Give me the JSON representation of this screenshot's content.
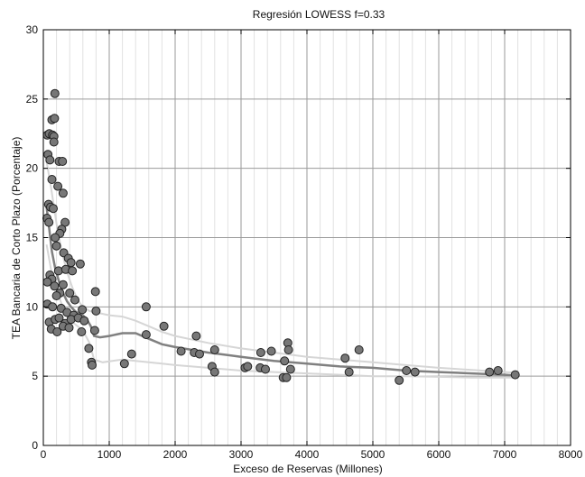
{
  "chart_data": {
    "type": "scatter",
    "title": "Regresión LOWESS f=0.33",
    "xlabel": "Exceso de Reservas (Millones)",
    "ylabel": "TEA Bancaria de Corto Plazo (Porcentaje)",
    "xlim": [
      0,
      8000
    ],
    "ylim": [
      0,
      30
    ],
    "xticks": [
      0,
      1000,
      2000,
      3000,
      4000,
      5000,
      6000,
      7000,
      8000
    ],
    "xtick_labels": [
      "0",
      "1000",
      "2000",
      "3000",
      "4000",
      "5000",
      "6000",
      "7000",
      "8000"
    ],
    "yticks": [
      0,
      5,
      10,
      15,
      20,
      25,
      30
    ],
    "ytick_labels": [
      "0",
      "5",
      "10",
      "15",
      "20",
      "25",
      "30"
    ],
    "grid": true,
    "minor_x_step": 200,
    "colors": {
      "points_fill": "#777777",
      "points_edge": "#222222",
      "lowess_main": "#808080",
      "lowess_bounds": "#d6d6d6",
      "grid_major": "#9a9a9a",
      "grid_minor": "#e2e2e2"
    },
    "points": [
      [
        60,
        22.4
      ],
      [
        90,
        22.5
      ],
      [
        140,
        22.4
      ],
      [
        160,
        22.3
      ],
      [
        130,
        23.5
      ],
      [
        170,
        23.6
      ],
      [
        175,
        25.4
      ],
      [
        70,
        21.0
      ],
      [
        160,
        21.9
      ],
      [
        100,
        20.6
      ],
      [
        240,
        20.5
      ],
      [
        290,
        20.5
      ],
      [
        220,
        18.7
      ],
      [
        300,
        18.2
      ],
      [
        130,
        19.2
      ],
      [
        80,
        17.4
      ],
      [
        110,
        17.2
      ],
      [
        150,
        17.1
      ],
      [
        55,
        16.4
      ],
      [
        85,
        16.1
      ],
      [
        330,
        16.1
      ],
      [
        280,
        15.6
      ],
      [
        250,
        15.3
      ],
      [
        180,
        15.0
      ],
      [
        200,
        14.4
      ],
      [
        310,
        13.9
      ],
      [
        380,
        13.5
      ],
      [
        420,
        13.2
      ],
      [
        560,
        13.1
      ],
      [
        100,
        12.3
      ],
      [
        230,
        12.6
      ],
      [
        340,
        12.7
      ],
      [
        440,
        12.6
      ],
      [
        130,
        12.0
      ],
      [
        170,
        11.5
      ],
      [
        60,
        11.8
      ],
      [
        300,
        11.6
      ],
      [
        250,
        11.0
      ],
      [
        400,
        11.0
      ],
      [
        480,
        10.5
      ],
      [
        200,
        10.8
      ],
      [
        790,
        11.1
      ],
      [
        60,
        10.2
      ],
      [
        140,
        10.0
      ],
      [
        270,
        9.9
      ],
      [
        360,
        9.6
      ],
      [
        460,
        9.4
      ],
      [
        590,
        9.8
      ],
      [
        800,
        9.7
      ],
      [
        90,
        8.9
      ],
      [
        180,
        9.1
      ],
      [
        240,
        9.2
      ],
      [
        330,
        8.8
      ],
      [
        420,
        9.1
      ],
      [
        530,
        9.2
      ],
      [
        620,
        9.0
      ],
      [
        120,
        8.4
      ],
      [
        210,
        8.2
      ],
      [
        300,
        8.6
      ],
      [
        390,
        8.5
      ],
      [
        580,
        8.2
      ],
      [
        690,
        7.0
      ],
      [
        780,
        8.3
      ],
      [
        730,
        6.0
      ],
      [
        740,
        5.8
      ],
      [
        1230,
        5.9
      ],
      [
        1340,
        6.6
      ],
      [
        1560,
        10.0
      ],
      [
        1560,
        8.0
      ],
      [
        1830,
        8.6
      ],
      [
        2090,
        6.8
      ],
      [
        2320,
        7.9
      ],
      [
        2290,
        6.7
      ],
      [
        2370,
        6.6
      ],
      [
        2560,
        5.7
      ],
      [
        2600,
        5.3
      ],
      [
        2600,
        6.9
      ],
      [
        3060,
        5.6
      ],
      [
        3100,
        5.7
      ],
      [
        3300,
        6.7
      ],
      [
        3290,
        5.6
      ],
      [
        3370,
        5.5
      ],
      [
        3460,
        6.8
      ],
      [
        3660,
        6.1
      ],
      [
        3640,
        4.9
      ],
      [
        3690,
        4.9
      ],
      [
        3710,
        7.4
      ],
      [
        3720,
        6.9
      ],
      [
        3750,
        5.5
      ],
      [
        4580,
        6.3
      ],
      [
        4640,
        5.3
      ],
      [
        4790,
        6.9
      ],
      [
        5400,
        4.7
      ],
      [
        5510,
        5.4
      ],
      [
        5640,
        5.3
      ],
      [
        6770,
        5.3
      ],
      [
        6900,
        5.4
      ],
      [
        7160,
        5.1
      ]
    ],
    "lowess_curve": [
      [
        50,
        17.2
      ],
      [
        90,
        15.6
      ],
      [
        130,
        14.0
      ],
      [
        180,
        12.8
      ],
      [
        240,
        11.8
      ],
      [
        300,
        11.0
      ],
      [
        360,
        10.4
      ],
      [
        420,
        10.0
      ],
      [
        480,
        9.7
      ],
      [
        540,
        9.5
      ],
      [
        600,
        9.4
      ],
      [
        660,
        9.1
      ],
      [
        720,
        8.6
      ],
      [
        770,
        7.9
      ],
      [
        860,
        7.8
      ],
      [
        1000,
        7.9
      ],
      [
        1200,
        8.1
      ],
      [
        1400,
        8.1
      ],
      [
        1600,
        7.7
      ],
      [
        1800,
        7.3
      ],
      [
        2000,
        7.1
      ],
      [
        2500,
        6.7
      ],
      [
        3000,
        6.4
      ],
      [
        3500,
        6.1
      ],
      [
        4000,
        5.9
      ],
      [
        4500,
        5.7
      ],
      [
        5000,
        5.6
      ],
      [
        5500,
        5.4
      ],
      [
        6000,
        5.3
      ],
      [
        6500,
        5.2
      ],
      [
        7000,
        5.1
      ],
      [
        7160,
        5.05
      ]
    ],
    "lowess_upper": [
      [
        50,
        20.5
      ],
      [
        120,
        18.5
      ],
      [
        200,
        16.0
      ],
      [
        280,
        14.0
      ],
      [
        360,
        12.5
      ],
      [
        440,
        11.4
      ],
      [
        520,
        10.5
      ],
      [
        600,
        10.0
      ],
      [
        700,
        9.7
      ],
      [
        800,
        9.6
      ],
      [
        1000,
        9.4
      ],
      [
        1200,
        9.3
      ],
      [
        1400,
        9.0
      ],
      [
        1600,
        8.6
      ],
      [
        1800,
        8.2
      ],
      [
        2000,
        7.9
      ],
      [
        2500,
        7.4
      ],
      [
        3000,
        7.0
      ],
      [
        3500,
        6.7
      ],
      [
        4000,
        6.4
      ],
      [
        4500,
        6.2
      ],
      [
        5000,
        6.0
      ],
      [
        5500,
        5.8
      ],
      [
        6000,
        5.6
      ],
      [
        6500,
        5.45
      ],
      [
        7000,
        5.3
      ],
      [
        7160,
        5.25
      ]
    ],
    "lowess_lower": [
      [
        50,
        14.5
      ],
      [
        120,
        12.6
      ],
      [
        200,
        11.2
      ],
      [
        280,
        10.2
      ],
      [
        360,
        9.4
      ],
      [
        440,
        8.9
      ],
      [
        520,
        8.6
      ],
      [
        600,
        8.3
      ],
      [
        700,
        7.4
      ],
      [
        770,
        6.2
      ],
      [
        900,
        6.0
      ],
      [
        1200,
        6.2
      ],
      [
        1400,
        6.1
      ],
      [
        1600,
        6.0
      ],
      [
        1800,
        5.9
      ],
      [
        2000,
        5.8
      ],
      [
        2500,
        5.6
      ],
      [
        3000,
        5.4
      ],
      [
        3500,
        5.3
      ],
      [
        4000,
        5.2
      ],
      [
        4500,
        5.1
      ],
      [
        5000,
        5.0
      ],
      [
        5500,
        5.0
      ],
      [
        6000,
        4.95
      ],
      [
        6500,
        4.9
      ],
      [
        7000,
        4.9
      ],
      [
        7160,
        4.9
      ]
    ]
  }
}
